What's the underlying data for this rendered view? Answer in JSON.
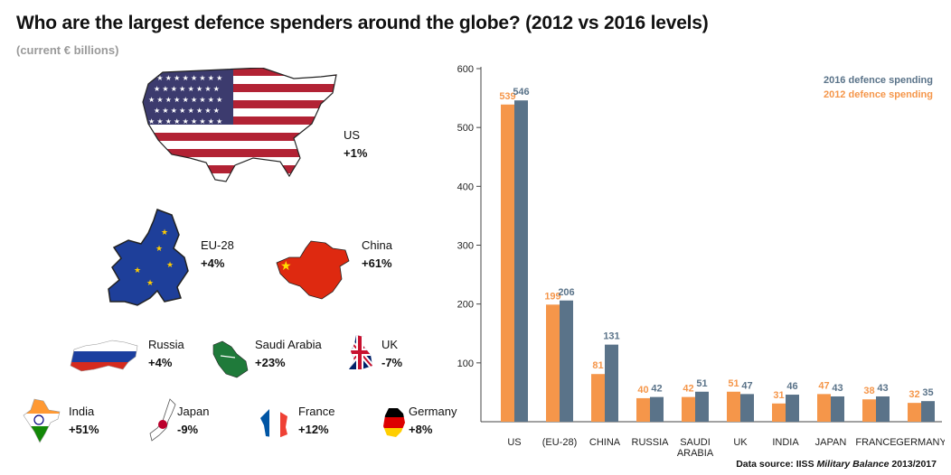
{
  "title": "Who are the largest defence spenders around the globe? (2012 vs 2016 levels)",
  "subtitle": "(current € billions)",
  "countries": [
    {
      "name": "US",
      "change": "+1%"
    },
    {
      "name": "EU-28",
      "change": "+4%"
    },
    {
      "name": "China",
      "change": "+61%"
    },
    {
      "name": "Russia",
      "change": "+4%"
    },
    {
      "name": "Saudi Arabia",
      "change": "+23%"
    },
    {
      "name": "UK",
      "change": "-7%"
    },
    {
      "name": "India",
      "change": "+51%"
    },
    {
      "name": "Japan",
      "change": "-9%"
    },
    {
      "name": "France",
      "change": "+12%"
    },
    {
      "name": "Germany",
      "change": "+8%"
    }
  ],
  "source": {
    "prefix": "Data source: IISS ",
    "italic": "Military Balance",
    "suffix": " 2013/2017"
  },
  "colors": {
    "s2012": "#f5964a",
    "s2016": "#5a7389",
    "axis": "#333333"
  },
  "chart_data": {
    "type": "bar",
    "categories": [
      "US",
      "(EU-28)",
      "CHINA",
      "RUSSIA",
      "SAUDI\nARABIA",
      "UK",
      "INDIA",
      "JAPAN",
      "FRANCE",
      "GERMANY"
    ],
    "series": [
      {
        "name": "2012 defence spending",
        "values": [
          539,
          199,
          81,
          40,
          42,
          51,
          31,
          47,
          38,
          32
        ]
      },
      {
        "name": "2016 defence spending",
        "values": [
          546,
          206,
          131,
          42,
          51,
          47,
          46,
          43,
          43,
          35
        ]
      }
    ],
    "ylim": [
      0,
      600
    ],
    "yticks": [
      100,
      200,
      300,
      400,
      500,
      600
    ],
    "title": "",
    "xlabel": "",
    "ylabel": "",
    "legend": [
      "2016 defence spending",
      "2012 defence spending"
    ],
    "legend_position": "top-right"
  }
}
